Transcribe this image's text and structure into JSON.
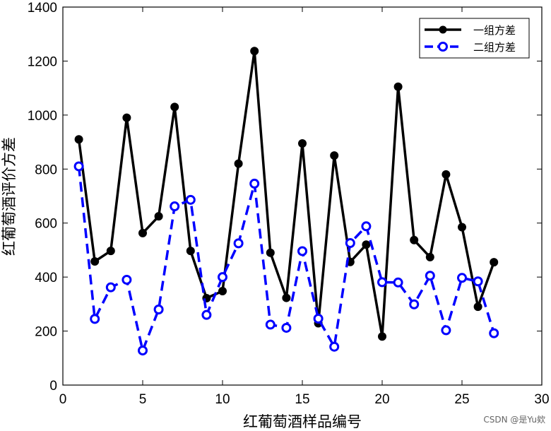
{
  "chart_data": {
    "type": "line",
    "title": "",
    "xlabel": "红葡萄酒样品编号",
    "ylabel": "红葡萄酒评价方差",
    "xlim": [
      0,
      30
    ],
    "ylim": [
      0,
      1400
    ],
    "xticks": [
      0,
      5,
      10,
      15,
      20,
      25,
      30
    ],
    "yticks": [
      0,
      200,
      400,
      600,
      800,
      1000,
      1200,
      1400
    ],
    "grid": false,
    "legend_position": "top-right",
    "x": [
      1,
      2,
      3,
      4,
      5,
      6,
      7,
      8,
      9,
      10,
      11,
      12,
      13,
      14,
      15,
      16,
      17,
      18,
      19,
      20,
      21,
      22,
      23,
      24,
      25,
      26,
      27
    ],
    "series": [
      {
        "name": "一组方差",
        "color": "#000000",
        "line_style": "solid",
        "marker": "filled-circle",
        "values": [
          910,
          458,
          497,
          990,
          563,
          625,
          1030,
          497,
          322,
          348,
          820,
          1237,
          490,
          323,
          895,
          229,
          850,
          456,
          520,
          180,
          1105,
          537,
          474,
          780,
          585,
          290,
          455
        ]
      },
      {
        "name": "二组方差",
        "color": "#0000ff",
        "line_style": "dashed",
        "marker": "open-circle",
        "values": [
          810,
          245,
          362,
          390,
          128,
          280,
          662,
          686,
          260,
          400,
          525,
          746,
          224,
          212,
          496,
          246,
          142,
          526,
          588,
          381,
          380,
          299,
          405,
          203,
          397,
          384,
          192
        ]
      }
    ]
  },
  "watermark": "CSDN @是Yu欸"
}
